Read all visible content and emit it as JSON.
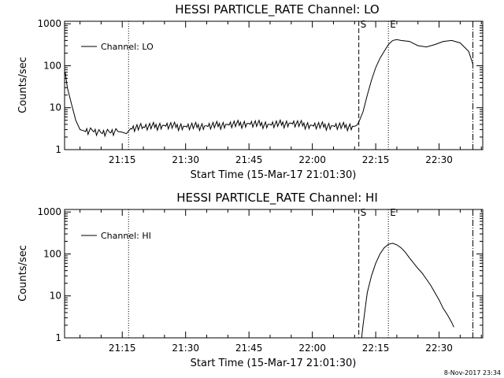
{
  "chart_data": [
    {
      "type": "line",
      "title": "HESSI PARTICLE_RATE Channel: LO",
      "xlabel": "Start Time (15-Mar-17 21:01:30)",
      "ylabel": "Counts/sec",
      "yscale": "log",
      "ylim": [
        1,
        1000
      ],
      "xlim_minutes": [
        21.01,
        22.423
      ],
      "xtick_labels": [
        "21:15",
        "21:30",
        "21:45",
        "22:00",
        "22:15",
        "22:30"
      ],
      "ytick_labels": [
        "1",
        "10",
        "100",
        "1000"
      ],
      "grid": false,
      "legend": "top-left",
      "series": [
        {
          "name": "Channel: LO",
          "x": [
            "21:01:30",
            "21:02:00",
            "21:03:00",
            "21:04:00",
            "21:05:00",
            "21:06:00",
            "21:08:00",
            "21:10:00",
            "21:12:00",
            "21:14:00",
            "21:15:00",
            "21:16:00",
            "21:17:00",
            "21:20:00",
            "21:25:00",
            "21:30:00",
            "21:35:00",
            "21:40:00",
            "21:45:00",
            "21:50:00",
            "21:55:00",
            "22:00:00",
            "22:05:00",
            "22:10:00",
            "22:10:30",
            "22:11:00",
            "22:12:00",
            "22:13:00",
            "22:14:00",
            "22:15:00",
            "22:16:00",
            "22:17:00",
            "22:18:00",
            "22:19:00",
            "22:20:00",
            "22:21:00",
            "22:23:00",
            "22:25:00",
            "22:27:00",
            "22:29:00",
            "22:31:00",
            "22:33:00",
            "22:35:00",
            "22:37:00",
            "22:38:00"
          ],
          "y": [
            70,
            30,
            12,
            5,
            3,
            2.8,
            2.8,
            2.5,
            2.6,
            2.7,
            2.6,
            2.4,
            3.2,
            3.5,
            3.8,
            3.6,
            3.7,
            4.0,
            4.2,
            4.0,
            4.3,
            3.8,
            3.7,
            3.6,
            3.8,
            4.5,
            8,
            20,
            45,
            90,
            150,
            220,
            320,
            400,
            420,
            400,
            380,
            300,
            280,
            320,
            380,
            400,
            350,
            220,
            110
          ]
        }
      ],
      "annotations": [
        {
          "text": "S",
          "x": "22:11:00",
          "style": "dashed"
        },
        {
          "text": "E",
          "x": "22:18:00",
          "style": "dotted"
        }
      ],
      "markers": [
        {
          "x": "21:16:30",
          "style": "dotted"
        },
        {
          "x": "22:38:00",
          "style": "dash-dot"
        }
      ]
    },
    {
      "type": "line",
      "title": "HESSI PARTICLE_RATE Channel: HI",
      "xlabel": "Start Time (15-Mar-17 21:01:30)",
      "ylabel": "Counts/sec",
      "yscale": "log",
      "ylim": [
        1,
        1000
      ],
      "xlim_minutes": [
        21.01,
        22.423
      ],
      "xtick_labels": [
        "21:15",
        "21:30",
        "21:45",
        "22:00",
        "22:15",
        "22:30"
      ],
      "ytick_labels": [
        "1",
        "10",
        "100",
        "1000"
      ],
      "grid": false,
      "legend": "top-left",
      "series": [
        {
          "name": "Channel: HI",
          "x": [
            "22:11:40",
            "22:12:00",
            "22:12:30",
            "22:13:00",
            "22:14:00",
            "22:15:00",
            "22:16:00",
            "22:17:00",
            "22:18:00",
            "22:19:00",
            "22:20:00",
            "22:21:00",
            "22:22:00",
            "22:23:00",
            "22:24:00",
            "22:25:00",
            "22:26:00",
            "22:27:00",
            "22:28:00",
            "22:29:00",
            "22:30:00",
            "22:31:00",
            "22:32:00",
            "22:33:00",
            "22:33:30"
          ],
          "y": [
            1.0,
            2,
            5,
            12,
            30,
            60,
            100,
            140,
            170,
            180,
            165,
            140,
            110,
            80,
            60,
            45,
            35,
            25,
            18,
            12,
            8,
            5,
            3.5,
            2.3,
            1.8
          ]
        }
      ],
      "annotations": [
        {
          "text": "S",
          "x": "22:11:00",
          "style": "dashed"
        },
        {
          "text": "E",
          "x": "22:18:00",
          "style": "dotted"
        }
      ],
      "markers": [
        {
          "x": "21:16:30",
          "style": "dotted"
        },
        {
          "x": "22:38:00",
          "style": "dash-dot"
        }
      ]
    }
  ],
  "footer_stamp": "8-Nov-2017 23:34"
}
